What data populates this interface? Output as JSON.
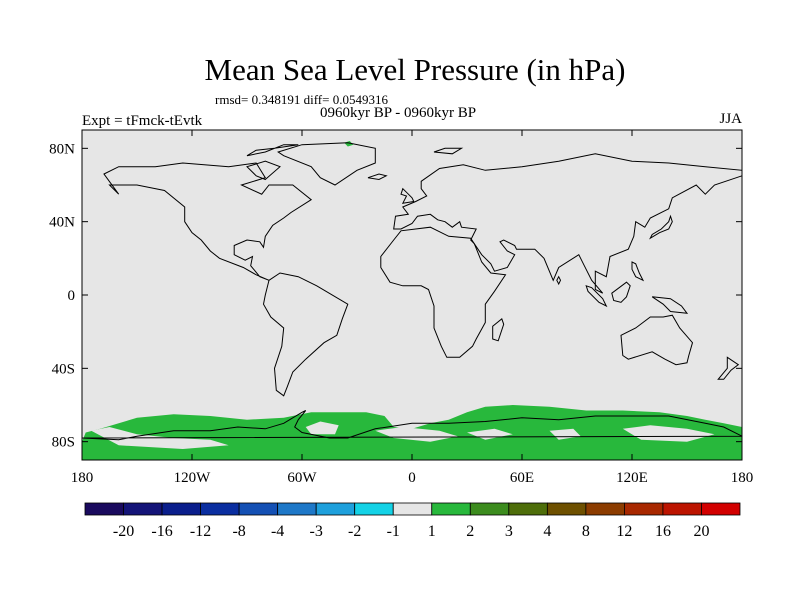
{
  "chart_data": {
    "type": "heatmap",
    "title": "Mean Sea Level Pressure (in hPa)",
    "stats_line": "rmsd= 0.348191 diff= 0.0549316",
    "period": "0960kyr BP - 0960kyr BP",
    "experiment": "Expt = tFmck-tEvtk",
    "season": "JJA",
    "x_ticks": [
      "180",
      "120W",
      "60W",
      "0",
      "60E",
      "120E",
      "180"
    ],
    "y_ticks": [
      "80N",
      "40N",
      "0",
      "40S",
      "80S"
    ],
    "xlim": [
      -180,
      180
    ],
    "ylim": [
      -90,
      90
    ],
    "colorbar": {
      "labels": [
        "-20",
        "-16",
        "-12",
        "-8",
        "-4",
        "-3",
        "-2",
        "-1",
        "1",
        "2",
        "3",
        "4",
        "8",
        "12",
        "16",
        "20"
      ],
      "colors": [
        "#1a0a5e",
        "#141478",
        "#0a1e8c",
        "#0a2ea0",
        "#1450b4",
        "#1e78c8",
        "#1ea0dc",
        "#14d2e6",
        "#e6e6e6",
        "#28b83c",
        "#3c8c1e",
        "#4e6e0a",
        "#6e5000",
        "#8c3c00",
        "#a82800",
        "#bc1400",
        "#d20000"
      ]
    },
    "background_color": "#e6e6e6",
    "anomaly_regions": [
      {
        "label": "Southern Ocean band",
        "range": "1 to 2",
        "color": "#28b83c"
      },
      {
        "label": "Greenland spot",
        "range": "1 to 2",
        "color": "#28b83c"
      }
    ]
  }
}
